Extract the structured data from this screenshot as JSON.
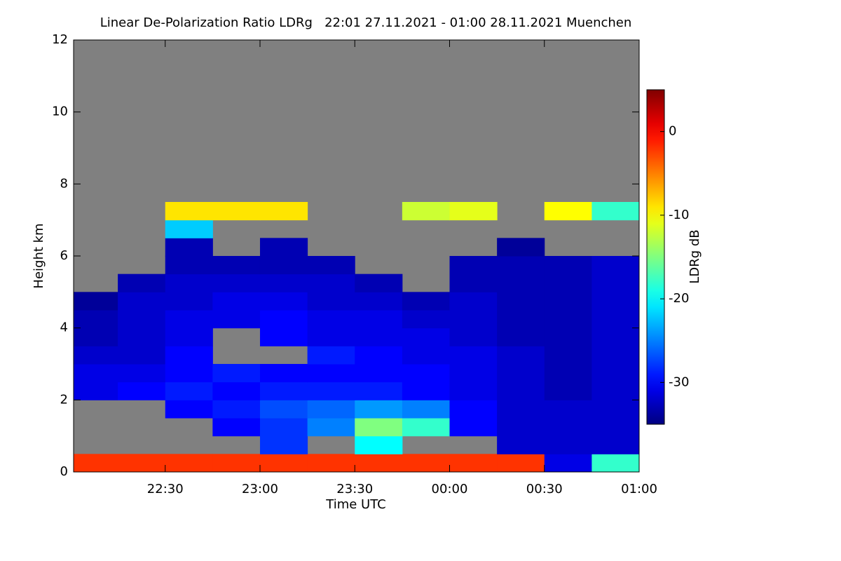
{
  "chart_data": {
    "type": "heatmap",
    "title": "Linear De-Polarization Ratio LDRg   22:01 27.11.2021 - 01:00 28.11.2021 Muenchen",
    "xlabel": "Time UTC",
    "ylabel": "Height km",
    "colorbar_label": "LDRg dB",
    "colormap": "jet",
    "missing_color": "#808080",
    "x_bins": [
      22.0167,
      22.25,
      22.5,
      22.75,
      23.0,
      23.25,
      23.5,
      23.75,
      24.0,
      24.25,
      24.5,
      24.75,
      25.0
    ],
    "y_bins": [
      0,
      0.5,
      1,
      1.5,
      2,
      2.5,
      3,
      3.5,
      4,
      4.5,
      5,
      5.5,
      6,
      6.5,
      7,
      7.5
    ],
    "values": [
      [
        -2,
        -2,
        -2,
        -2,
        -2,
        -2,
        -2,
        -2,
        -2,
        -2,
        -31,
        -18
      ],
      [
        null,
        null,
        null,
        null,
        -28,
        null,
        -20,
        null,
        null,
        -32,
        -32,
        -32
      ],
      [
        null,
        null,
        null,
        -30,
        -28,
        -25,
        -15,
        -18,
        -30,
        -32,
        -32,
        -32
      ],
      [
        null,
        null,
        -30,
        -29,
        -27,
        -26,
        -24,
        -25,
        -30,
        -32,
        -32,
        -32
      ],
      [
        -31,
        -30,
        -29,
        -30,
        -29,
        -29,
        -29,
        -30,
        -31,
        -32,
        -33,
        -32
      ],
      [
        -31,
        -31,
        -30,
        -29,
        -30,
        -30,
        -30,
        -30,
        -31,
        -32,
        -33,
        -32
      ],
      [
        -32,
        -32,
        -30,
        null,
        null,
        -29,
        -30,
        -31,
        -31,
        -32,
        -33,
        -32
      ],
      [
        -33,
        -32,
        -31,
        null,
        -30,
        -31,
        -31,
        -31,
        -32,
        -33,
        -33,
        -32
      ],
      [
        -33,
        -32,
        -31,
        -31,
        -30,
        -31,
        -31,
        -32,
        -32,
        -33,
        -33,
        -32
      ],
      [
        -34,
        -32,
        -32,
        -31,
        -31,
        -32,
        -32,
        -33,
        -32,
        -33,
        -33,
        -32
      ],
      [
        null,
        -33,
        -32,
        -32,
        -32,
        -32,
        -33,
        null,
        -33,
        -33,
        -33,
        -32
      ],
      [
        null,
        null,
        -33,
        -33,
        -33,
        -33,
        null,
        null,
        -33,
        -33,
        -33,
        -32
      ],
      [
        null,
        null,
        -33,
        null,
        -33,
        null,
        null,
        null,
        null,
        -34,
        null,
        null
      ],
      [
        null,
        null,
        -22,
        null,
        null,
        null,
        null,
        null,
        null,
        null,
        null,
        null
      ],
      [
        null,
        null,
        -9,
        -9,
        -9,
        null,
        null,
        -12,
        -11,
        null,
        -10,
        -18
      ]
    ],
    "xlim": [
      22.0167,
      25.0
    ],
    "xticks": [
      {
        "value": 22.5,
        "label": "22:30"
      },
      {
        "value": 23.0,
        "label": "23:00"
      },
      {
        "value": 23.5,
        "label": "23:30"
      },
      {
        "value": 24.0,
        "label": "00:00"
      },
      {
        "value": 24.5,
        "label": "00:30"
      },
      {
        "value": 25.0,
        "label": "01:00"
      }
    ],
    "ylim": [
      0,
      12
    ],
    "yticks": [
      0,
      2,
      4,
      6,
      8,
      10,
      12
    ],
    "clim": [
      -35,
      5
    ],
    "cticks": [
      0,
      -10,
      -20,
      -30
    ]
  }
}
